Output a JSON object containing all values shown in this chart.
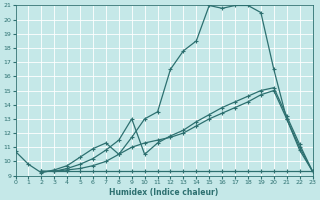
{
  "xlabel": "Humidex (Indice chaleur)",
  "bg_color": "#c5e8e8",
  "grid_color": "#b0d8d8",
  "line_color": "#2d7070",
  "xlim": [
    0,
    23
  ],
  "ylim": [
    9,
    21
  ],
  "xticks": [
    0,
    1,
    2,
    3,
    4,
    5,
    6,
    7,
    8,
    9,
    10,
    11,
    12,
    13,
    14,
    15,
    16,
    17,
    18,
    19,
    20,
    21,
    22,
    23
  ],
  "yticks": [
    9,
    10,
    11,
    12,
    13,
    14,
    15,
    16,
    17,
    18,
    19,
    20,
    21
  ],
  "curve1_x": [
    0,
    1,
    2,
    3,
    4,
    5,
    6,
    7,
    8,
    9,
    10,
    11,
    12,
    13,
    14,
    15,
    16,
    17,
    18,
    19,
    20,
    21,
    22,
    23
  ],
  "curve1_y": [
    10.7,
    9.8,
    9.2,
    9.4,
    9.7,
    10.3,
    10.9,
    11.3,
    10.5,
    11.7,
    13.0,
    13.5,
    16.5,
    17.8,
    18.5,
    21.0,
    20.8,
    21.0,
    21.0,
    20.5,
    16.5,
    13.0,
    10.8,
    9.3
  ],
  "curve2_x": [
    2,
    3,
    4,
    5,
    6,
    7,
    8,
    9,
    10,
    11,
    12,
    13,
    14,
    15,
    16,
    17,
    18,
    19,
    20,
    21,
    22,
    23
  ],
  "curve2_y": [
    9.3,
    9.3,
    9.3,
    9.3,
    9.3,
    9.3,
    9.3,
    9.3,
    9.3,
    9.3,
    9.3,
    9.3,
    9.3,
    9.3,
    9.3,
    9.3,
    9.3,
    9.3,
    9.3,
    9.3,
    9.3,
    9.3
  ],
  "curve3_x": [
    2,
    3,
    4,
    5,
    6,
    7,
    8,
    9,
    10,
    11,
    12,
    13,
    14,
    15,
    16,
    17,
    18,
    19,
    20,
    21,
    22,
    23
  ],
  "curve3_y": [
    9.3,
    9.3,
    9.4,
    9.5,
    9.7,
    10.0,
    10.5,
    11.0,
    11.3,
    11.5,
    11.7,
    12.0,
    12.5,
    13.0,
    13.4,
    13.8,
    14.2,
    14.7,
    15.0,
    13.0,
    11.0,
    9.3
  ],
  "curve4_x": [
    2,
    3,
    4,
    5,
    6,
    7,
    8,
    9,
    10,
    11,
    12,
    13,
    14,
    15,
    16,
    17,
    18,
    19,
    20,
    21,
    22,
    23
  ],
  "curve4_y": [
    9.3,
    9.3,
    9.5,
    9.8,
    10.2,
    10.8,
    11.5,
    13.0,
    10.5,
    11.3,
    11.8,
    12.2,
    12.8,
    13.3,
    13.8,
    14.2,
    14.6,
    15.0,
    15.2,
    13.2,
    11.2,
    9.3
  ]
}
